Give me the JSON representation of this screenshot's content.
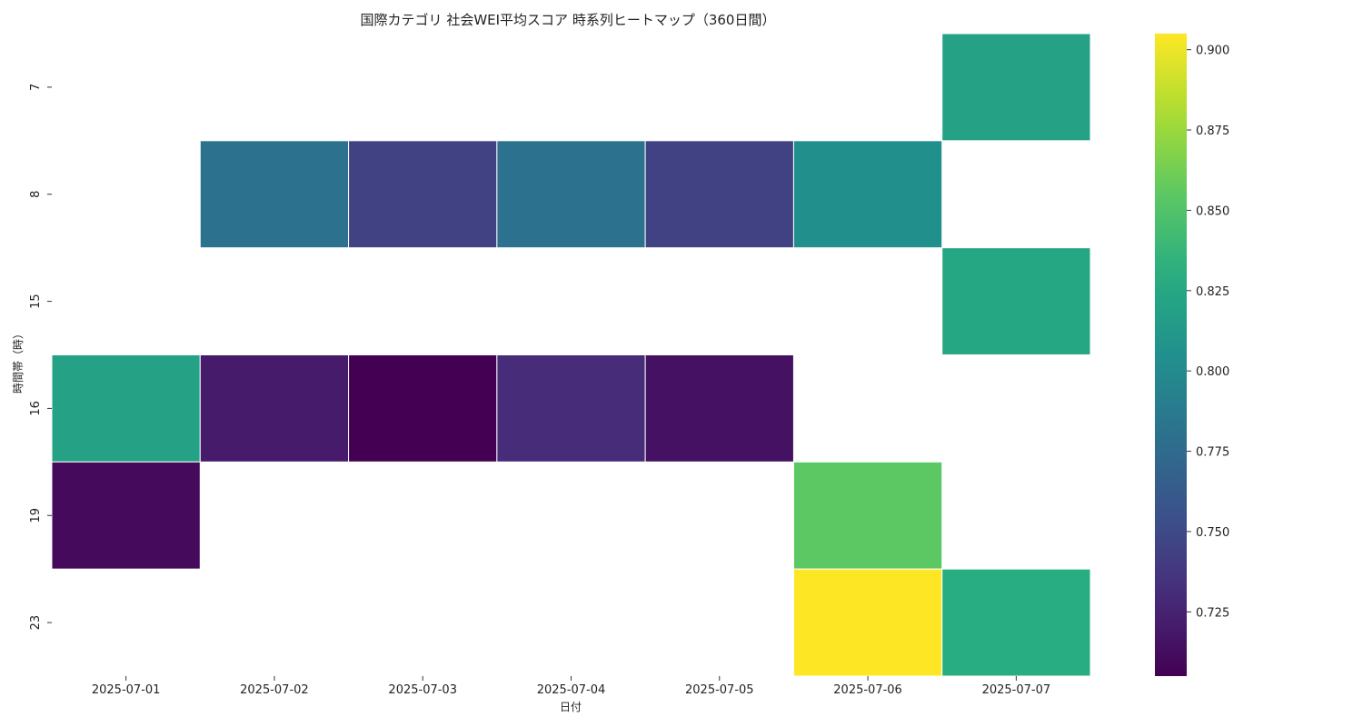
{
  "chart_data": {
    "type": "heatmap",
    "title": "国際カテゴリ 社会WEI平均スコア 時系列ヒートマップ（360日間）",
    "xlabel": "日付",
    "ylabel": "時間帯（時）",
    "x_categories": [
      "2025-07-01",
      "2025-07-02",
      "2025-07-03",
      "2025-07-04",
      "2025-07-05",
      "2025-07-06",
      "2025-07-07"
    ],
    "y_categories": [
      "7",
      "8",
      "15",
      "16",
      "19",
      "23"
    ],
    "values": [
      [
        null,
        null,
        null,
        null,
        null,
        null,
        0.82
      ],
      [
        null,
        0.78,
        0.745,
        0.78,
        0.745,
        0.805,
        null
      ],
      [
        null,
        null,
        null,
        null,
        null,
        null,
        0.825
      ],
      [
        0.82,
        0.72,
        0.705,
        0.73,
        0.715,
        null,
        null
      ],
      [
        0.71,
        null,
        null,
        null,
        null,
        0.855,
        null
      ],
      [
        null,
        null,
        null,
        null,
        null,
        0.905,
        0.83
      ]
    ],
    "colorscale": "viridis",
    "colorbar": {
      "range": [
        0.705,
        0.905
      ],
      "ticks": [
        "0.725",
        "0.750",
        "0.775",
        "0.800",
        "0.825",
        "0.850",
        "0.875",
        "0.900"
      ]
    },
    "grid": false
  }
}
